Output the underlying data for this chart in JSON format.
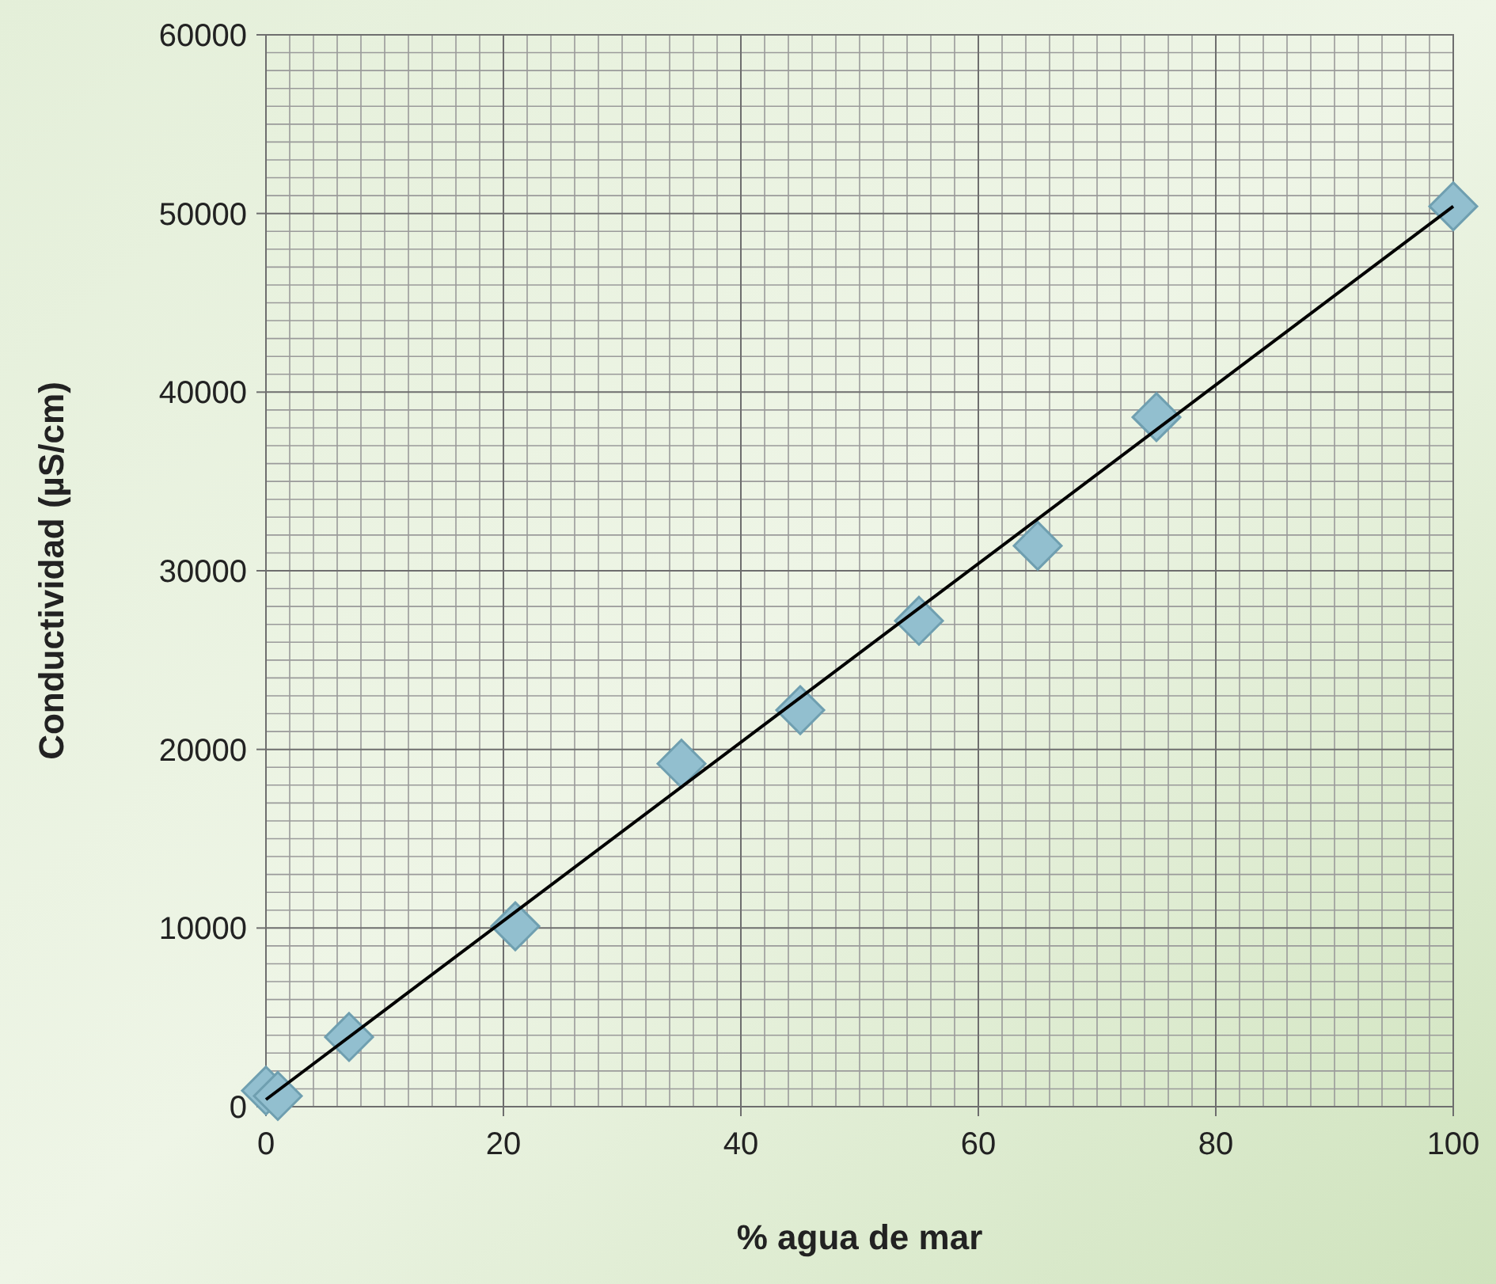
{
  "chart_data": {
    "type": "scatter",
    "xlabel": "% agua de mar",
    "ylabel": "Conductividad (µS/cm)",
    "xlim": [
      0,
      100
    ],
    "xticks": [
      0,
      20,
      40,
      60,
      80,
      100
    ],
    "ylim": [
      0,
      60000
    ],
    "yticks": [
      0,
      10000,
      20000,
      30000,
      40000,
      50000,
      60000
    ],
    "grid": true,
    "series": [
      {
        "color": "#92bfcf",
        "marker": "diamond",
        "x": [
          0,
          1,
          7,
          21,
          35,
          45,
          55,
          65,
          75,
          100
        ],
        "values": [
          900,
          600,
          3900,
          10100,
          19200,
          22200,
          27200,
          31400,
          38600,
          50400
        ]
      },
      {
        "type": "line",
        "color": "#000000",
        "x": [
          0,
          100
        ],
        "values": [
          400,
          50400
        ]
      }
    ]
  }
}
